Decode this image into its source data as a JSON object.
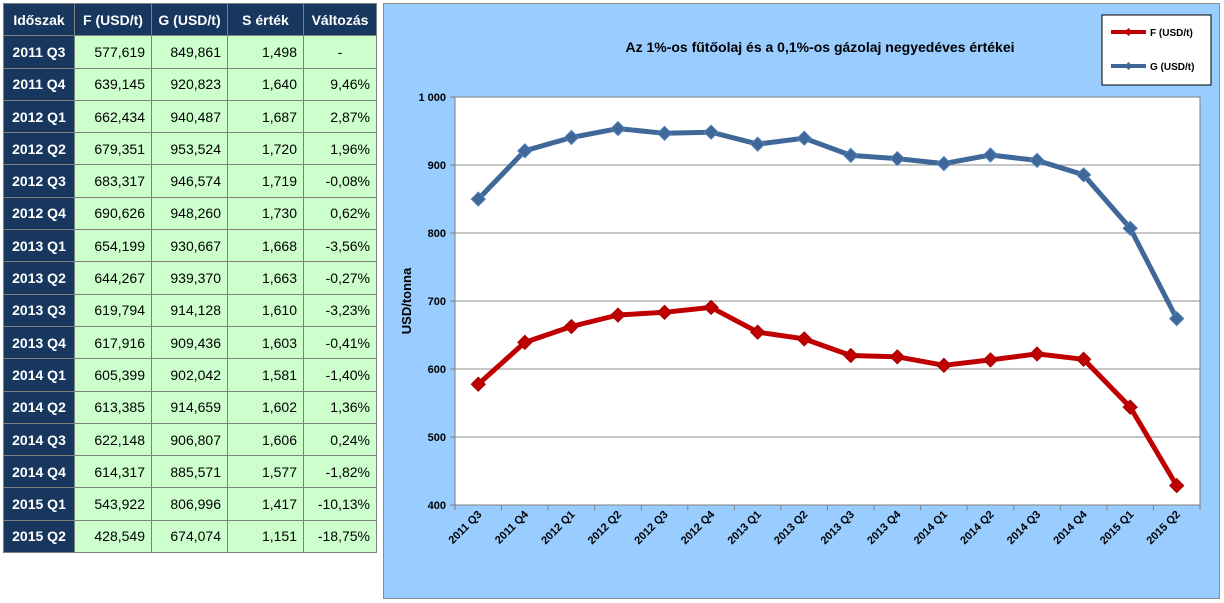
{
  "table": {
    "headers": [
      "Időszak",
      "F (USD/t)",
      "G (USD/t)",
      "S érték",
      "Változás"
    ],
    "rows": [
      [
        "2011 Q3",
        "577,619",
        "849,861",
        "1,498",
        "-"
      ],
      [
        "2011 Q4",
        "639,145",
        "920,823",
        "1,640",
        "9,46%"
      ],
      [
        "2012 Q1",
        "662,434",
        "940,487",
        "1,687",
        "2,87%"
      ],
      [
        "2012 Q2",
        "679,351",
        "953,524",
        "1,720",
        "1,96%"
      ],
      [
        "2012 Q3",
        "683,317",
        "946,574",
        "1,719",
        "-0,08%"
      ],
      [
        "2012 Q4",
        "690,626",
        "948,260",
        "1,730",
        "0,62%"
      ],
      [
        "2013 Q1",
        "654,199",
        "930,667",
        "1,668",
        "-3,56%"
      ],
      [
        "2013 Q2",
        "644,267",
        "939,370",
        "1,663",
        "-0,27%"
      ],
      [
        "2013 Q3",
        "619,794",
        "914,128",
        "1,610",
        "-3,23%"
      ],
      [
        "2013 Q4",
        "617,916",
        "909,436",
        "1,603",
        "-0,41%"
      ],
      [
        "2014 Q1",
        "605,399",
        "902,042",
        "1,581",
        "-1,40%"
      ],
      [
        "2014 Q2",
        "613,385",
        "914,659",
        "1,602",
        "1,36%"
      ],
      [
        "2014 Q3",
        "622,148",
        "906,807",
        "1,606",
        "0,24%"
      ],
      [
        "2014 Q4",
        "614,317",
        "885,571",
        "1,577",
        "-1,82%"
      ],
      [
        "2015 Q1",
        "543,922",
        "806,996",
        "1,417",
        "-10,13%"
      ],
      [
        "2015 Q2",
        "428,549",
        "674,074",
        "1,151",
        "-18,75%"
      ]
    ]
  },
  "chart_data": {
    "type": "line",
    "title": "Az 1%-os fűtőolaj és a 0,1%-os gázolaj negyedéves értékei",
    "xlabel": "",
    "ylabel": "USD/tonna",
    "ylim": [
      400,
      1000
    ],
    "yticks": [
      400,
      500,
      600,
      700,
      800,
      900,
      1000
    ],
    "ytick_labels": [
      "400",
      "500",
      "600",
      "700",
      "800",
      "900",
      "1 000"
    ],
    "grid": true,
    "legend_position": "top-right",
    "categories": [
      "2011 Q3",
      "2011 Q4",
      "2012 Q1",
      "2012 Q2",
      "2012 Q3",
      "2012 Q4",
      "2013 Q1",
      "2013 Q2",
      "2013 Q3",
      "2013 Q4",
      "2014 Q1",
      "2014 Q2",
      "2014 Q3",
      "2014 Q4",
      "2015 Q1",
      "2015 Q2"
    ],
    "series": [
      {
        "name": "F (USD/t)",
        "color": "#c00000",
        "values": [
          577.619,
          639.145,
          662.434,
          679.351,
          683.317,
          690.626,
          654.199,
          644.267,
          619.794,
          617.916,
          605.399,
          613.385,
          622.148,
          614.317,
          543.922,
          428.549
        ]
      },
      {
        "name": "G (USD/t)",
        "color": "#3f6797",
        "values": [
          849.861,
          920.823,
          940.487,
          953.524,
          946.574,
          948.26,
          930.667,
          939.37,
          914.128,
          909.436,
          902.042,
          914.659,
          906.807,
          885.571,
          806.996,
          674.074
        ]
      }
    ]
  }
}
